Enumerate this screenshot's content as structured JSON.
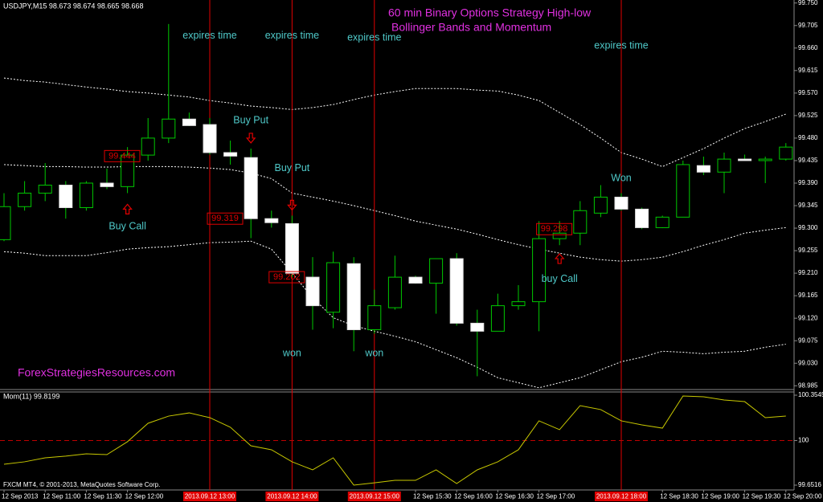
{
  "chart_data": [
    {
      "type": "candlestick",
      "header": "USDJPY,M15  98.673 98.674 98.665 98.668",
      "title": "60 min Binary Options Strategy High-low",
      "subtitle": "Bollinger Bands and Momentum",
      "watermark": "ForexStrategiesResources.com",
      "categories": [
        "12 Sep 2013",
        null,
        "12 Sep 11:00",
        null,
        "12 Sep 11:30",
        null,
        "12 Sep 12:00",
        null,
        null,
        null,
        null,
        null,
        null,
        null,
        null,
        null,
        null,
        null,
        null,
        null,
        "12 Sep 15:30",
        null,
        "12 Sep 16:00",
        null,
        "12 Sep 16:30",
        null,
        "12 Sep 17:00",
        null,
        null,
        null,
        null,
        null,
        "12 Sep 18:30",
        null,
        "12 Sep 19:00",
        null,
        "12 Sep 19:30",
        null,
        "12 Sep 20:00"
      ],
      "open": [
        99.277,
        99.343,
        99.37,
        99.386,
        99.341,
        99.39,
        99.383,
        99.446,
        99.48,
        99.518,
        99.507,
        99.451,
        99.441,
        99.319,
        99.309,
        99.202,
        99.132,
        99.229,
        99.097,
        99.141,
        99.202,
        99.19,
        99.239,
        99.11,
        99.094,
        99.145,
        99.153,
        99.279,
        99.29,
        99.33,
        99.362,
        99.338,
        99.301,
        99.322,
        99.425,
        99.412,
        99.438,
        99.435,
        99.438
      ],
      "high": [
        99.37,
        99.394,
        99.43,
        99.394,
        99.394,
        99.419,
        99.462,
        99.52,
        99.708,
        99.531,
        99.52,
        99.475,
        99.459,
        99.335,
        99.325,
        99.242,
        99.253,
        99.242,
        99.177,
        99.245,
        99.205,
        99.239,
        99.25,
        99.137,
        99.169,
        99.186,
        99.314,
        99.314,
        99.354,
        99.386,
        99.37,
        99.341,
        99.325,
        99.435,
        99.443,
        99.451,
        99.447,
        99.443,
        99.47
      ],
      "low": [
        99.274,
        99.335,
        99.354,
        99.319,
        99.335,
        99.378,
        99.37,
        99.435,
        99.47,
        99.504,
        99.447,
        99.427,
        99.28,
        99.301,
        99.202,
        99.097,
        99.1,
        99.054,
        99.089,
        99.137,
        99.189,
        99.129,
        99.105,
        99.004,
        99.094,
        99.137,
        99.094,
        99.266,
        99.266,
        99.322,
        99.335,
        99.298,
        99.3,
        99.322,
        99.406,
        99.37,
        99.435,
        99.39,
        99.435
      ],
      "close": [
        99.343,
        99.37,
        99.386,
        99.341,
        99.39,
        99.383,
        99.446,
        99.48,
        99.518,
        99.505,
        99.451,
        99.444,
        99.319,
        99.311,
        99.21,
        99.145,
        99.231,
        99.097,
        99.145,
        99.202,
        99.19,
        99.239,
        99.11,
        99.094,
        99.145,
        99.153,
        99.279,
        99.29,
        99.335,
        99.362,
        99.338,
        99.301,
        99.322,
        99.427,
        99.412,
        99.438,
        99.435,
        99.438,
        99.462
      ],
      "bands": {
        "upper": [
          99.6,
          99.595,
          99.592,
          99.587,
          99.582,
          99.578,
          99.573,
          99.57,
          99.566,
          99.562,
          99.555,
          99.55,
          99.544,
          99.541,
          99.537,
          99.541,
          99.547,
          99.557,
          99.566,
          99.573,
          99.579,
          99.579,
          99.579,
          99.576,
          99.574,
          99.566,
          99.555,
          99.531,
          99.507,
          99.48,
          99.451,
          99.438,
          99.423,
          99.441,
          99.459,
          99.48,
          99.499,
          99.513,
          99.528
        ],
        "middle": [
          99.427,
          99.425,
          99.423,
          99.423,
          99.422,
          99.422,
          99.423,
          99.423,
          99.423,
          99.422,
          99.42,
          99.417,
          99.41,
          99.399,
          99.37,
          99.362,
          99.354,
          99.345,
          99.335,
          99.325,
          99.314,
          99.306,
          99.298,
          99.288,
          99.277,
          99.267,
          99.258,
          99.25,
          99.242,
          99.237,
          99.234,
          99.237,
          99.242,
          99.253,
          99.266,
          99.277,
          99.29,
          99.296,
          99.301
        ],
        "lower": [
          99.253,
          99.25,
          99.245,
          99.245,
          99.245,
          99.251,
          99.258,
          99.261,
          99.263,
          99.267,
          99.271,
          99.272,
          99.274,
          99.258,
          99.21,
          99.161,
          99.121,
          99.105,
          99.094,
          99.084,
          99.073,
          99.057,
          99.041,
          99.022,
          99.001,
          98.991,
          98.981,
          98.991,
          99.001,
          99.017,
          99.033,
          99.042,
          99.054,
          99.052,
          99.049,
          99.052,
          99.054,
          99.062,
          99.068
        ]
      },
      "ylim": [
        98.979,
        99.756
      ],
      "yticks": [
        98.985,
        {
          "value": 99.03,
          "label": "99.030"
        },
        99.075,
        {
          "value": 99.12,
          "label": "99.120"
        },
        99.165,
        {
          "value": 99.21,
          "label": "99.210"
        },
        99.255,
        {
          "value": 99.3,
          "label": "99.300"
        },
        99.345,
        {
          "value": 99.39,
          "label": "99.390"
        },
        99.435,
        {
          "value": 99.48,
          "label": "99.480"
        },
        99.525,
        {
          "value": 99.57,
          "label": "99.570"
        },
        99.615,
        {
          "value": 99.66,
          "label": "99.660"
        },
        99.705,
        {
          "value": 99.75,
          "label": "99.750"
        }
      ],
      "annotations": [
        {
          "text": "expires time",
          "candle": 10,
          "price": 99.684
        },
        {
          "text": "expires time",
          "candle": 14,
          "price": 99.684
        },
        {
          "text": "expires time",
          "candle": 18,
          "price": 99.68
        },
        {
          "text": "expires time",
          "candle": 30,
          "price": 99.664
        },
        {
          "text": "Buy Put",
          "candle": 12,
          "price": 99.515
        },
        {
          "text": "Buy Put",
          "candle": 14,
          "price": 99.419
        },
        {
          "text": "Buy Call",
          "candle": 6,
          "price": 99.303
        },
        {
          "text": "buy Call",
          "candle": 27,
          "price": 99.198
        },
        {
          "text": "Won",
          "candle": 30,
          "price": 99.399
        },
        {
          "text": "won",
          "candle": 14,
          "price": 99.049
        },
        {
          "text": "won",
          "candle": 18,
          "price": 99.049
        }
      ],
      "signals": [
        {
          "candle": 12,
          "price": 99.48,
          "direction": "down"
        },
        {
          "candle": 14,
          "price": 99.346,
          "direction": "down"
        },
        {
          "candle": 6,
          "price": 99.338,
          "direction": "up"
        },
        {
          "candle": 27,
          "price": 99.239,
          "direction": "up"
        }
      ],
      "price_labels": [
        {
          "candle": 5,
          "value": 99.444
        },
        {
          "candle": 10,
          "value": 99.319
        },
        {
          "candle": 13,
          "value": 99.202
        },
        {
          "candle": 26,
          "value": 99.298
        }
      ],
      "vlines": [
        {
          "candle": 10,
          "label": "2013.09.12 13:00"
        },
        {
          "candle": 14,
          "label": "2013.09.12 14:00"
        },
        {
          "candle": 18,
          "label": "2013.09.12 15:00"
        },
        {
          "candle": 30,
          "label": "2013.09.12 18:00"
        }
      ],
      "colors": {
        "bull_fill": "#000000",
        "bull_edge": "#00c800",
        "bear_fill": "#ffffff",
        "bear_edge": "#e0e0e0",
        "wick": "#00c800",
        "band": "#ffffff",
        "title": "#e030e0",
        "annotation": "#4fc9c9",
        "signal": "#e00000",
        "vline": "#e00000"
      }
    },
    {
      "type": "line",
      "header": "Mom(11) 99.8199",
      "footer": "FXCM MT4, © 2001-2013, MetaQuotes Software Corp.",
      "values": [
        99.815,
        99.834,
        99.865,
        99.878,
        99.896,
        99.89,
        99.991,
        100.135,
        100.191,
        100.216,
        100.179,
        100.104,
        99.959,
        99.928,
        99.834,
        99.771,
        99.865,
        99.652,
        99.67,
        99.689,
        99.689,
        99.771,
        99.664,
        99.771,
        99.834,
        99.928,
        100.154,
        100.085,
        100.273,
        100.242,
        100.154,
        100.122,
        100.097,
        100.348,
        100.342,
        100.317,
        100.304,
        100.179,
        100.191
      ],
      "ylim": [
        99.6516,
        100.3545
      ],
      "yticks": [
        99.6516,
        100,
        100.3545
      ],
      "level": 100,
      "color": "#c8c800",
      "level_color": "#c00000"
    }
  ]
}
